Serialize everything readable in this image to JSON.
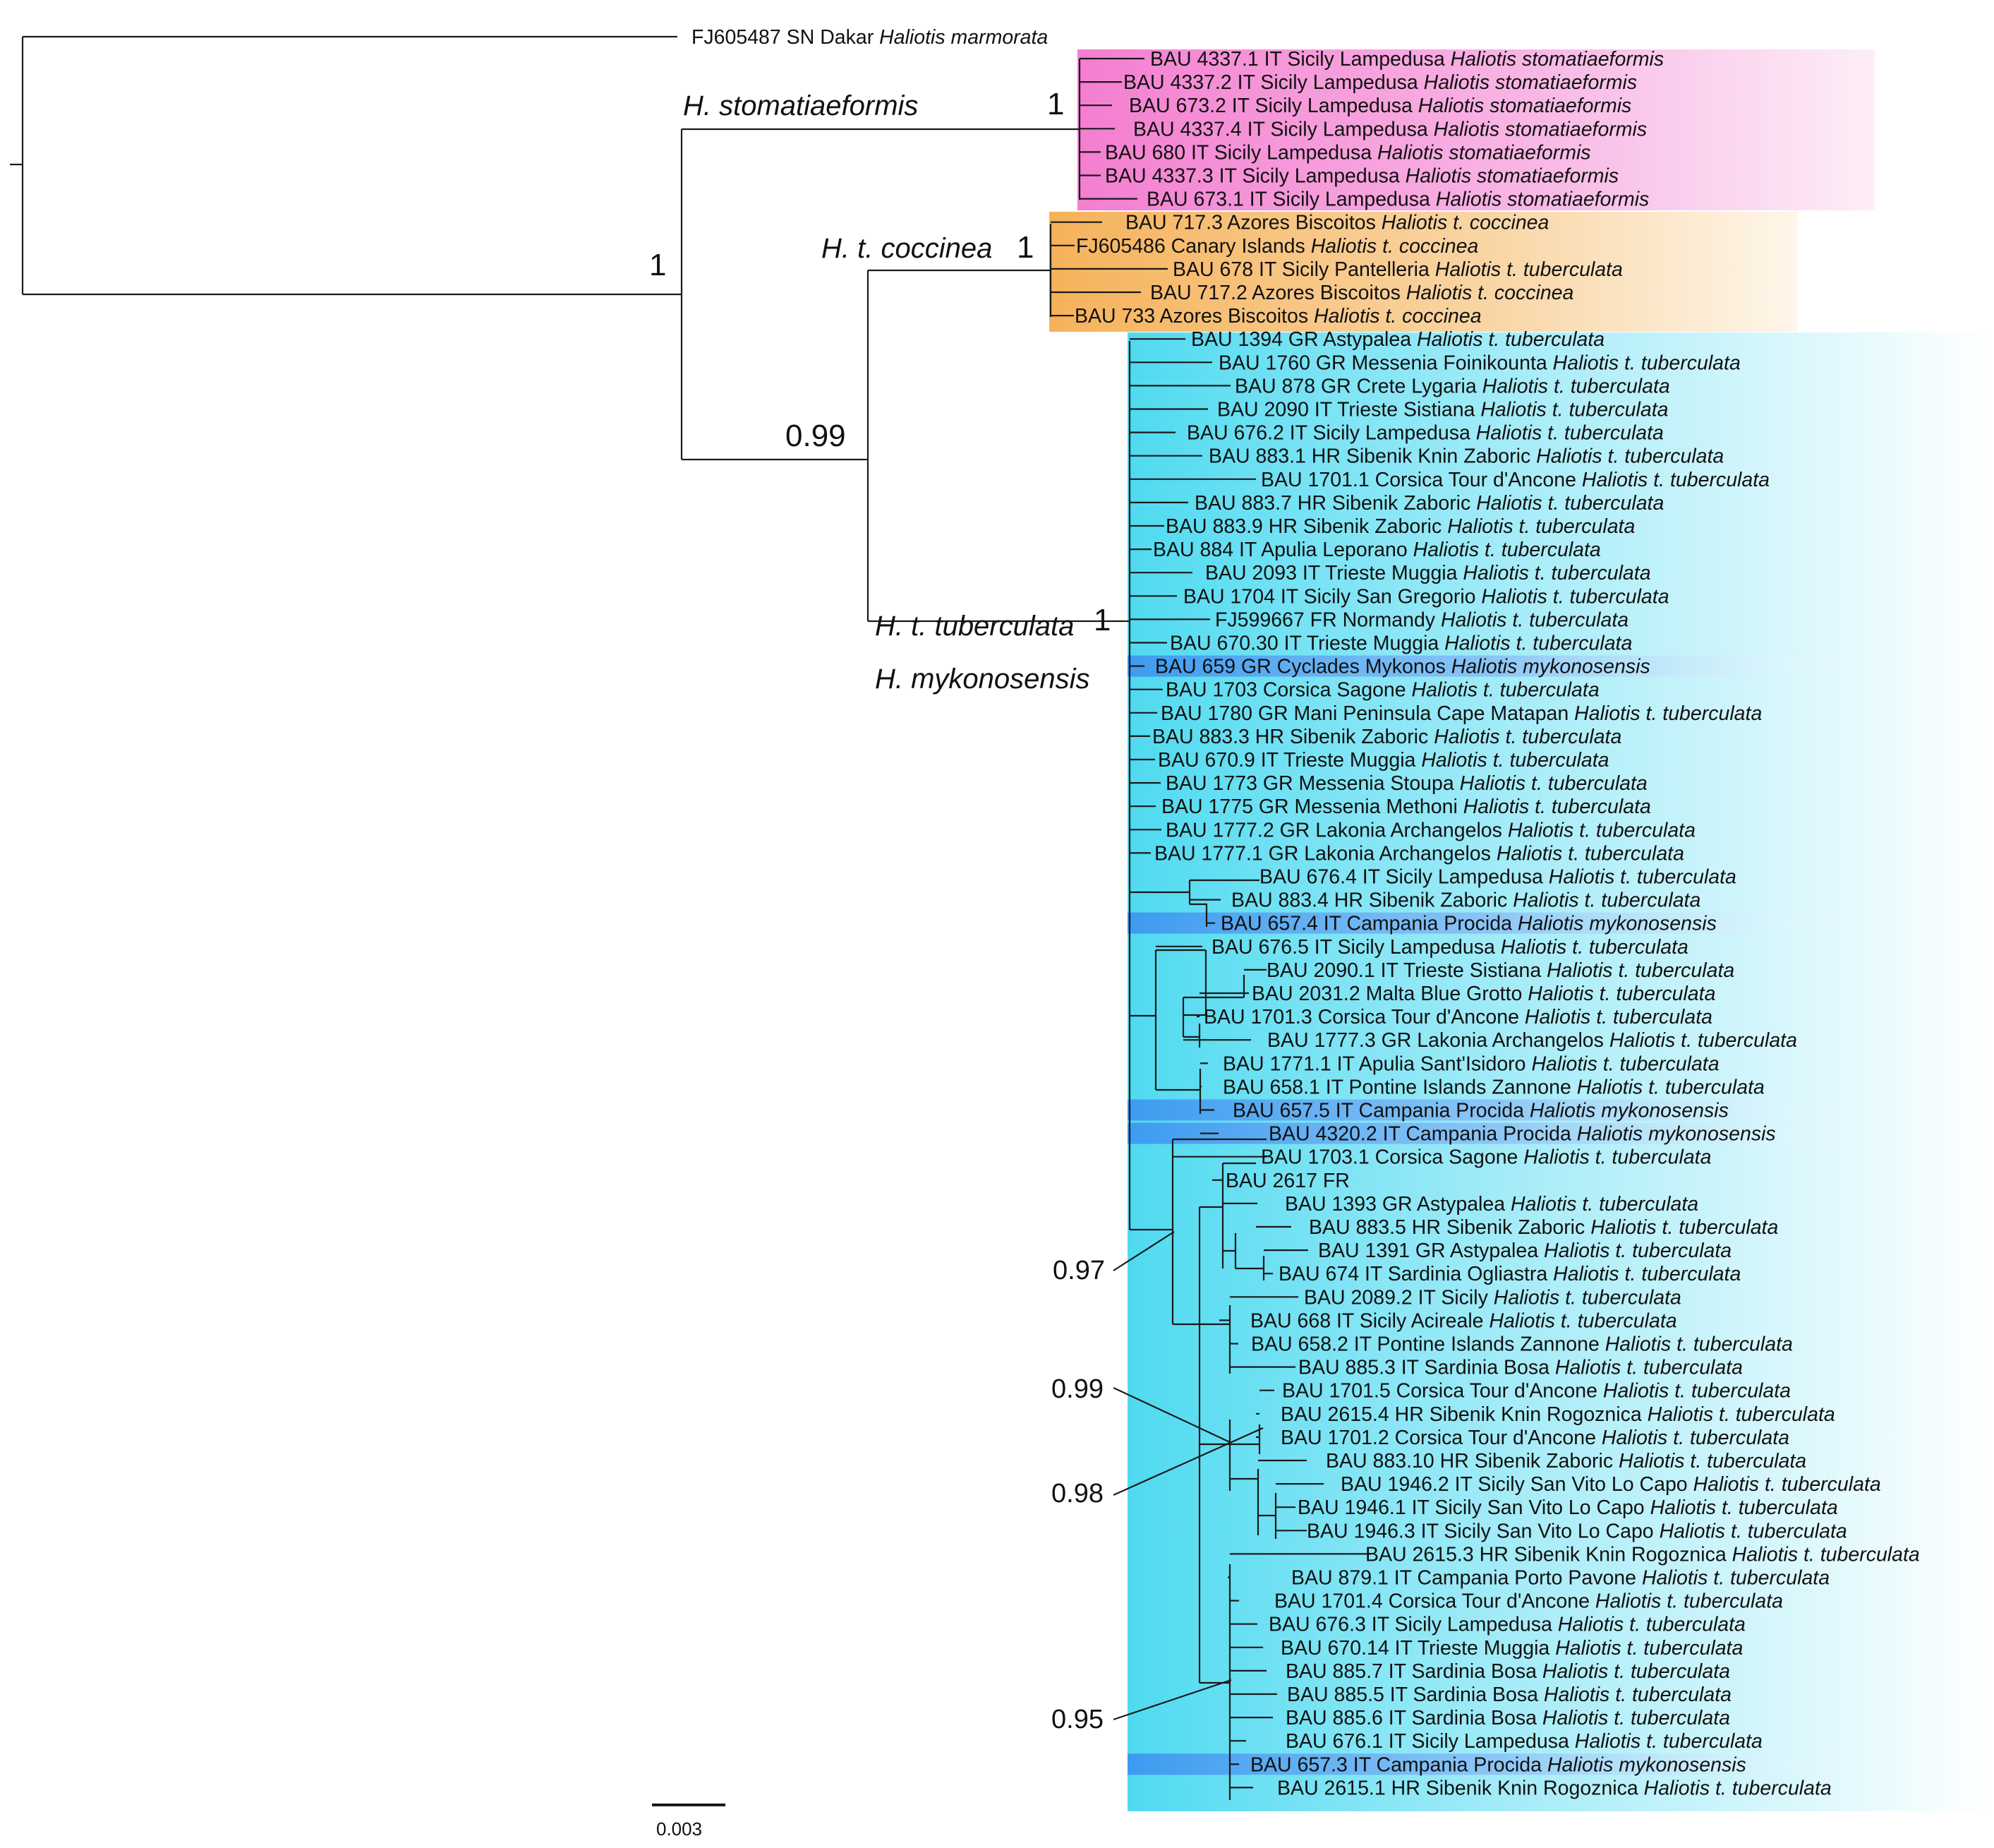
{
  "colors": {
    "stomatiaeformis": "#f47ed0",
    "coccinea": "#f6b25a",
    "tuberculata": "#4fdaf0",
    "mykonosensis": "#3d9bf0"
  },
  "outgroup": {
    "label": "FJ605487 SN Dakar",
    "species": "Haliotis marmorata"
  },
  "clades": {
    "stomatiaeformis": "H. stomatiaeformis",
    "coccinea": "H. t. coccinea",
    "tuberculata": "H. t. tuberculata",
    "mykonosensis": "H. mykonosensis"
  },
  "supports": {
    "root_split": "1",
    "stomatiaeformis": "1",
    "coccinea": "1",
    "tuberculata_plus_coccinea": "0.99",
    "tuberculata": "1",
    "node_097": "0.97",
    "node_099": "0.99",
    "node_098": "0.98",
    "node_095": "0.95"
  },
  "scale": {
    "label": "0.003"
  },
  "tips": [
    {
      "id": "BAU 4337.1 IT Sicily Lampedusa",
      "sp": "Haliotis stomatiaeformis",
      "grp": "stomatiaeformis"
    },
    {
      "id": "BAU 4337.2 IT Sicily Lampedusa",
      "sp": "Haliotis stomatiaeformis",
      "grp": "stomatiaeformis"
    },
    {
      "id": "BAU 673.2 IT Sicily Lampedusa",
      "sp": "Haliotis stomatiaeformis",
      "grp": "stomatiaeformis"
    },
    {
      "id": "BAU 4337.4 IT Sicily Lampedusa",
      "sp": "Haliotis stomatiaeformis",
      "grp": "stomatiaeformis"
    },
    {
      "id": "BAU 680 IT Sicily Lampedusa",
      "sp": "Haliotis stomatiaeformis",
      "grp": "stomatiaeformis"
    },
    {
      "id": "BAU 4337.3 IT Sicily Lampedusa",
      "sp": "Haliotis stomatiaeformis",
      "grp": "stomatiaeformis"
    },
    {
      "id": "BAU 673.1 IT Sicily Lampedusa",
      "sp": "Haliotis stomatiaeformis",
      "grp": "stomatiaeformis"
    },
    {
      "id": "BAU 717.3 Azores Biscoitos",
      "sp": "Haliotis t. coccinea",
      "grp": "coccinea"
    },
    {
      "id": "FJ605486 Canary Islands",
      "sp": "Haliotis t. coccinea",
      "grp": "coccinea"
    },
    {
      "id": "BAU 678 IT Sicily Pantelleria",
      "sp": "Haliotis t. tuberculata",
      "grp": "coccinea"
    },
    {
      "id": "BAU 717.2 Azores Biscoitos",
      "sp": "Haliotis t. coccinea",
      "grp": "coccinea"
    },
    {
      "id": "BAU 733 Azores Biscoitos",
      "sp": "Haliotis t. coccinea",
      "grp": "coccinea"
    },
    {
      "id": "BAU 1394 GR Astypalea",
      "sp": "Haliotis t. tuberculata",
      "grp": "tuberculata"
    },
    {
      "id": "BAU 1760 GR Messenia Foinikounta",
      "sp": "Haliotis t. tuberculata",
      "grp": "tuberculata"
    },
    {
      "id": "BAU 878 GR Crete Lygaria",
      "sp": "Haliotis t. tuberculata",
      "grp": "tuberculata"
    },
    {
      "id": "BAU 2090 IT Trieste Sistiana",
      "sp": "Haliotis t. tuberculata",
      "grp": "tuberculata"
    },
    {
      "id": "BAU 676.2 IT Sicily Lampedusa",
      "sp": "Haliotis t. tuberculata",
      "grp": "tuberculata"
    },
    {
      "id": "BAU 883.1 HR Sibenik Knin Zaboric",
      "sp": "Haliotis t. tuberculata",
      "grp": "tuberculata"
    },
    {
      "id": "BAU 1701.1 Corsica Tour d'Ancone",
      "sp": "Haliotis t. tuberculata",
      "grp": "tuberculata"
    },
    {
      "id": "BAU 883.7 HR Sibenik Zaboric",
      "sp": "Haliotis t. tuberculata",
      "grp": "tuberculata"
    },
    {
      "id": "BAU 883.9 HR Sibenik Zaboric",
      "sp": "Haliotis t. tuberculata",
      "grp": "tuberculata"
    },
    {
      "id": "BAU 884 IT Apulia Leporano",
      "sp": "Haliotis t. tuberculata",
      "grp": "tuberculata"
    },
    {
      "id": "BAU 2093 IT Trieste Muggia",
      "sp": "Haliotis t. tuberculata",
      "grp": "tuberculata"
    },
    {
      "id": "BAU 1704 IT Sicily San Gregorio",
      "sp": "Haliotis t. tuberculata",
      "grp": "tuberculata"
    },
    {
      "id": "FJ599667 FR Normandy",
      "sp": "Haliotis t. tuberculata",
      "grp": "tuberculata"
    },
    {
      "id": "BAU 670.30 IT Trieste Muggia",
      "sp": "Haliotis t. tuberculata",
      "grp": "tuberculata"
    },
    {
      "id": "BAU 659 GR Cyclades Mykonos",
      "sp": "Haliotis mykonosensis",
      "grp": "mykonosensis"
    },
    {
      "id": "BAU 1703 Corsica Sagone",
      "sp": "Haliotis t. tuberculata",
      "grp": "tuberculata"
    },
    {
      "id": "BAU 1780 GR Mani Peninsula Cape Matapan",
      "sp": "Haliotis t. tuberculata",
      "grp": "tuberculata"
    },
    {
      "id": "BAU 883.3 HR Sibenik Zaboric",
      "sp": "Haliotis t. tuberculata",
      "grp": "tuberculata"
    },
    {
      "id": "BAU 670.9 IT Trieste Muggia",
      "sp": "Haliotis t. tuberculata",
      "grp": "tuberculata"
    },
    {
      "id": "BAU 1773 GR Messenia Stoupa",
      "sp": "Haliotis t. tuberculata",
      "grp": "tuberculata"
    },
    {
      "id": "BAU 1775 GR Messenia Methoni",
      "sp": "Haliotis t. tuberculata",
      "grp": "tuberculata"
    },
    {
      "id": "BAU 1777.2 GR Lakonia Archangelos",
      "sp": "Haliotis t. tuberculata",
      "grp": "tuberculata"
    },
    {
      "id": "BAU 1777.1 GR Lakonia Archangelos",
      "sp": "Haliotis t. tuberculata",
      "grp": "tuberculata"
    },
    {
      "id": "BAU 676.4 IT Sicily Lampedusa",
      "sp": "Haliotis t. tuberculata",
      "grp": "tuberculata"
    },
    {
      "id": "BAU 883.4 HR Sibenik Zaboric",
      "sp": "Haliotis t. tuberculata",
      "grp": "tuberculata"
    },
    {
      "id": "BAU 657.4 IT Campania Procida",
      "sp": "Haliotis mykonosensis",
      "grp": "mykonosensis"
    },
    {
      "id": "BAU 676.5 IT Sicily Lampedusa",
      "sp": "Haliotis t. tuberculata",
      "grp": "tuberculata"
    },
    {
      "id": "BAU 2090.1 IT Trieste Sistiana",
      "sp": "Haliotis t. tuberculata",
      "grp": "tuberculata"
    },
    {
      "id": "BAU 2031.2 Malta Blue Grotto",
      "sp": "Haliotis t. tuberculata",
      "grp": "tuberculata"
    },
    {
      "id": "BAU 1701.3 Corsica Tour d'Ancone",
      "sp": "Haliotis t. tuberculata",
      "grp": "tuberculata"
    },
    {
      "id": "BAU 1777.3 GR Lakonia Archangelos",
      "sp": "Haliotis t. tuberculata",
      "grp": "tuberculata"
    },
    {
      "id": "BAU 1771.1 IT Apulia Sant'Isidoro",
      "sp": "Haliotis t. tuberculata",
      "grp": "tuberculata"
    },
    {
      "id": "BAU 658.1 IT Pontine Islands Zannone",
      "sp": "Haliotis t. tuberculata",
      "grp": "tuberculata"
    },
    {
      "id": "BAU 657.5 IT Campania Procida",
      "sp": "Haliotis mykonosensis",
      "grp": "mykonosensis"
    },
    {
      "id": "BAU 4320.2 IT Campania Procida",
      "sp": "Haliotis mykonosensis",
      "grp": "mykonosensis"
    },
    {
      "id": "BAU 1703.1 Corsica Sagone",
      "sp": "Haliotis t. tuberculata",
      "grp": "tuberculata"
    },
    {
      "id": "BAU 2617 FR",
      "sp": "",
      "grp": "tuberculata"
    },
    {
      "id": "BAU 1393 GR Astypalea",
      "sp": "Haliotis t. tuberculata",
      "grp": "tuberculata"
    },
    {
      "id": "BAU 883.5 HR Sibenik Zaboric",
      "sp": "Haliotis t. tuberculata",
      "grp": "tuberculata"
    },
    {
      "id": "BAU 1391 GR Astypalea",
      "sp": "Haliotis t. tuberculata",
      "grp": "tuberculata"
    },
    {
      "id": "BAU 674 IT Sardinia Ogliastra",
      "sp": "Haliotis t. tuberculata",
      "grp": "tuberculata"
    },
    {
      "id": "BAU 2089.2 IT Sicily",
      "sp": "Haliotis t. tuberculata",
      "grp": "tuberculata"
    },
    {
      "id": "BAU 668 IT Sicily Acireale",
      "sp": "Haliotis t. tuberculata",
      "grp": "tuberculata"
    },
    {
      "id": "BAU 658.2 IT Pontine Islands Zannone",
      "sp": "Haliotis t. tuberculata",
      "grp": "tuberculata"
    },
    {
      "id": "BAU 885.3 IT Sardinia Bosa",
      "sp": "Haliotis t. tuberculata",
      "grp": "tuberculata"
    },
    {
      "id": "BAU 1701.5 Corsica Tour d'Ancone",
      "sp": "Haliotis t. tuberculata",
      "grp": "tuberculata"
    },
    {
      "id": "BAU 2615.4 HR Sibenik Knin Rogoznica",
      "sp": "Haliotis t. tuberculata",
      "grp": "tuberculata"
    },
    {
      "id": "BAU 1701.2 Corsica Tour d'Ancone",
      "sp": "Haliotis t. tuberculata",
      "grp": "tuberculata"
    },
    {
      "id": "BAU 883.10 HR Sibenik Zaboric",
      "sp": "Haliotis t. tuberculata",
      "grp": "tuberculata"
    },
    {
      "id": "BAU 1946.2 IT Sicily San Vito Lo Capo",
      "sp": "Haliotis t. tuberculata",
      "grp": "tuberculata"
    },
    {
      "id": "BAU 1946.1 IT Sicily San Vito Lo Capo",
      "sp": "Haliotis t. tuberculata",
      "grp": "tuberculata"
    },
    {
      "id": "BAU 1946.3 IT Sicily San Vito Lo Capo",
      "sp": "Haliotis t. tuberculata",
      "grp": "tuberculata"
    },
    {
      "id": "BAU 2615.3 HR Sibenik Knin Rogoznica",
      "sp": "Haliotis t. tuberculata",
      "grp": "tuberculata"
    },
    {
      "id": "BAU 879.1 IT Campania Porto Pavone",
      "sp": "Haliotis t. tuberculata",
      "grp": "tuberculata"
    },
    {
      "id": "BAU 1701.4 Corsica Tour d'Ancone",
      "sp": "Haliotis t. tuberculata",
      "grp": "tuberculata"
    },
    {
      "id": "BAU 676.3 IT Sicily Lampedusa",
      "sp": "Haliotis t. tuberculata",
      "grp": "tuberculata"
    },
    {
      "id": "BAU 670.14 IT Trieste Muggia",
      "sp": "Haliotis t. tuberculata",
      "grp": "tuberculata"
    },
    {
      "id": "BAU 885.7 IT Sardinia Bosa",
      "sp": "Haliotis t. tuberculata",
      "grp": "tuberculata"
    },
    {
      "id": "BAU 885.5 IT Sardinia Bosa",
      "sp": "Haliotis t. tuberculata",
      "grp": "tuberculata"
    },
    {
      "id": "BAU 885.6 IT Sardinia Bosa",
      "sp": "Haliotis t. tuberculata",
      "grp": "tuberculata"
    },
    {
      "id": "BAU 676.1 IT Sicily Lampedusa",
      "sp": "Haliotis t. tuberculata",
      "grp": "tuberculata"
    },
    {
      "id": "BAU 657.3 IT Campania Procida",
      "sp": "Haliotis mykonosensis",
      "grp": "mykonosensis"
    },
    {
      "id": "BAU 2615.1 HR Sibenik Knin Rogoznica",
      "sp": "Haliotis t. tuberculata",
      "grp": "tuberculata"
    }
  ]
}
